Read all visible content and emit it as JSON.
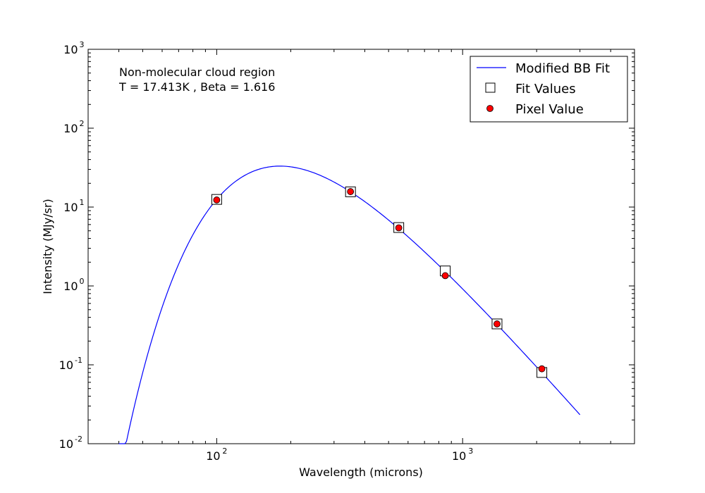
{
  "chart_data": {
    "type": "scatter",
    "xlabel": "Wavelength (microns)",
    "ylabel": "Intensity (MJy/sr)",
    "x_scale": "log",
    "y_scale": "log",
    "xlim": [
      30,
      5000
    ],
    "ylim": [
      0.01,
      1000
    ],
    "x_ticks": [
      {
        "value": 100,
        "base": "10",
        "exp": "2"
      },
      {
        "value": 1000,
        "base": "10",
        "exp": "3"
      }
    ],
    "y_ticks": [
      {
        "value": 0.01,
        "base": "10",
        "exp": "-2"
      },
      {
        "value": 0.1,
        "base": "10",
        "exp": "-1"
      },
      {
        "value": 1,
        "base": "10",
        "exp": "0"
      },
      {
        "value": 10,
        "base": "10",
        "exp": "1"
      },
      {
        "value": 100,
        "base": "10",
        "exp": "2"
      },
      {
        "value": 1000,
        "base": "10",
        "exp": "3"
      }
    ],
    "annotation": [
      "Non-molecular cloud region",
      "T = 17.413K , Beta = 1.616"
    ],
    "legend_position": "top-right",
    "grid": false,
    "series": [
      {
        "name": "Modified BB Fit",
        "kind": "line",
        "color": "#0000ff",
        "fit_params": {
          "T": 17.413,
          "beta": 1.616,
          "x_range": [
            40,
            3000
          ],
          "ref_x": 350,
          "ref_y": 15.6
        }
      },
      {
        "name": "Fit Values",
        "kind": "marker",
        "marker": "square",
        "color": "#ffffff",
        "x": [
          100,
          350,
          550,
          850,
          1380,
          2100
        ],
        "y": [
          12.5,
          15.6,
          5.5,
          1.55,
          0.33,
          0.08
        ]
      },
      {
        "name": "Pixel Value",
        "kind": "marker",
        "marker": "circle",
        "color": "#ff0000",
        "x": [
          100,
          350,
          550,
          850,
          1380,
          2100
        ],
        "y": [
          12.3,
          15.7,
          5.45,
          1.35,
          0.33,
          0.089
        ]
      }
    ]
  }
}
